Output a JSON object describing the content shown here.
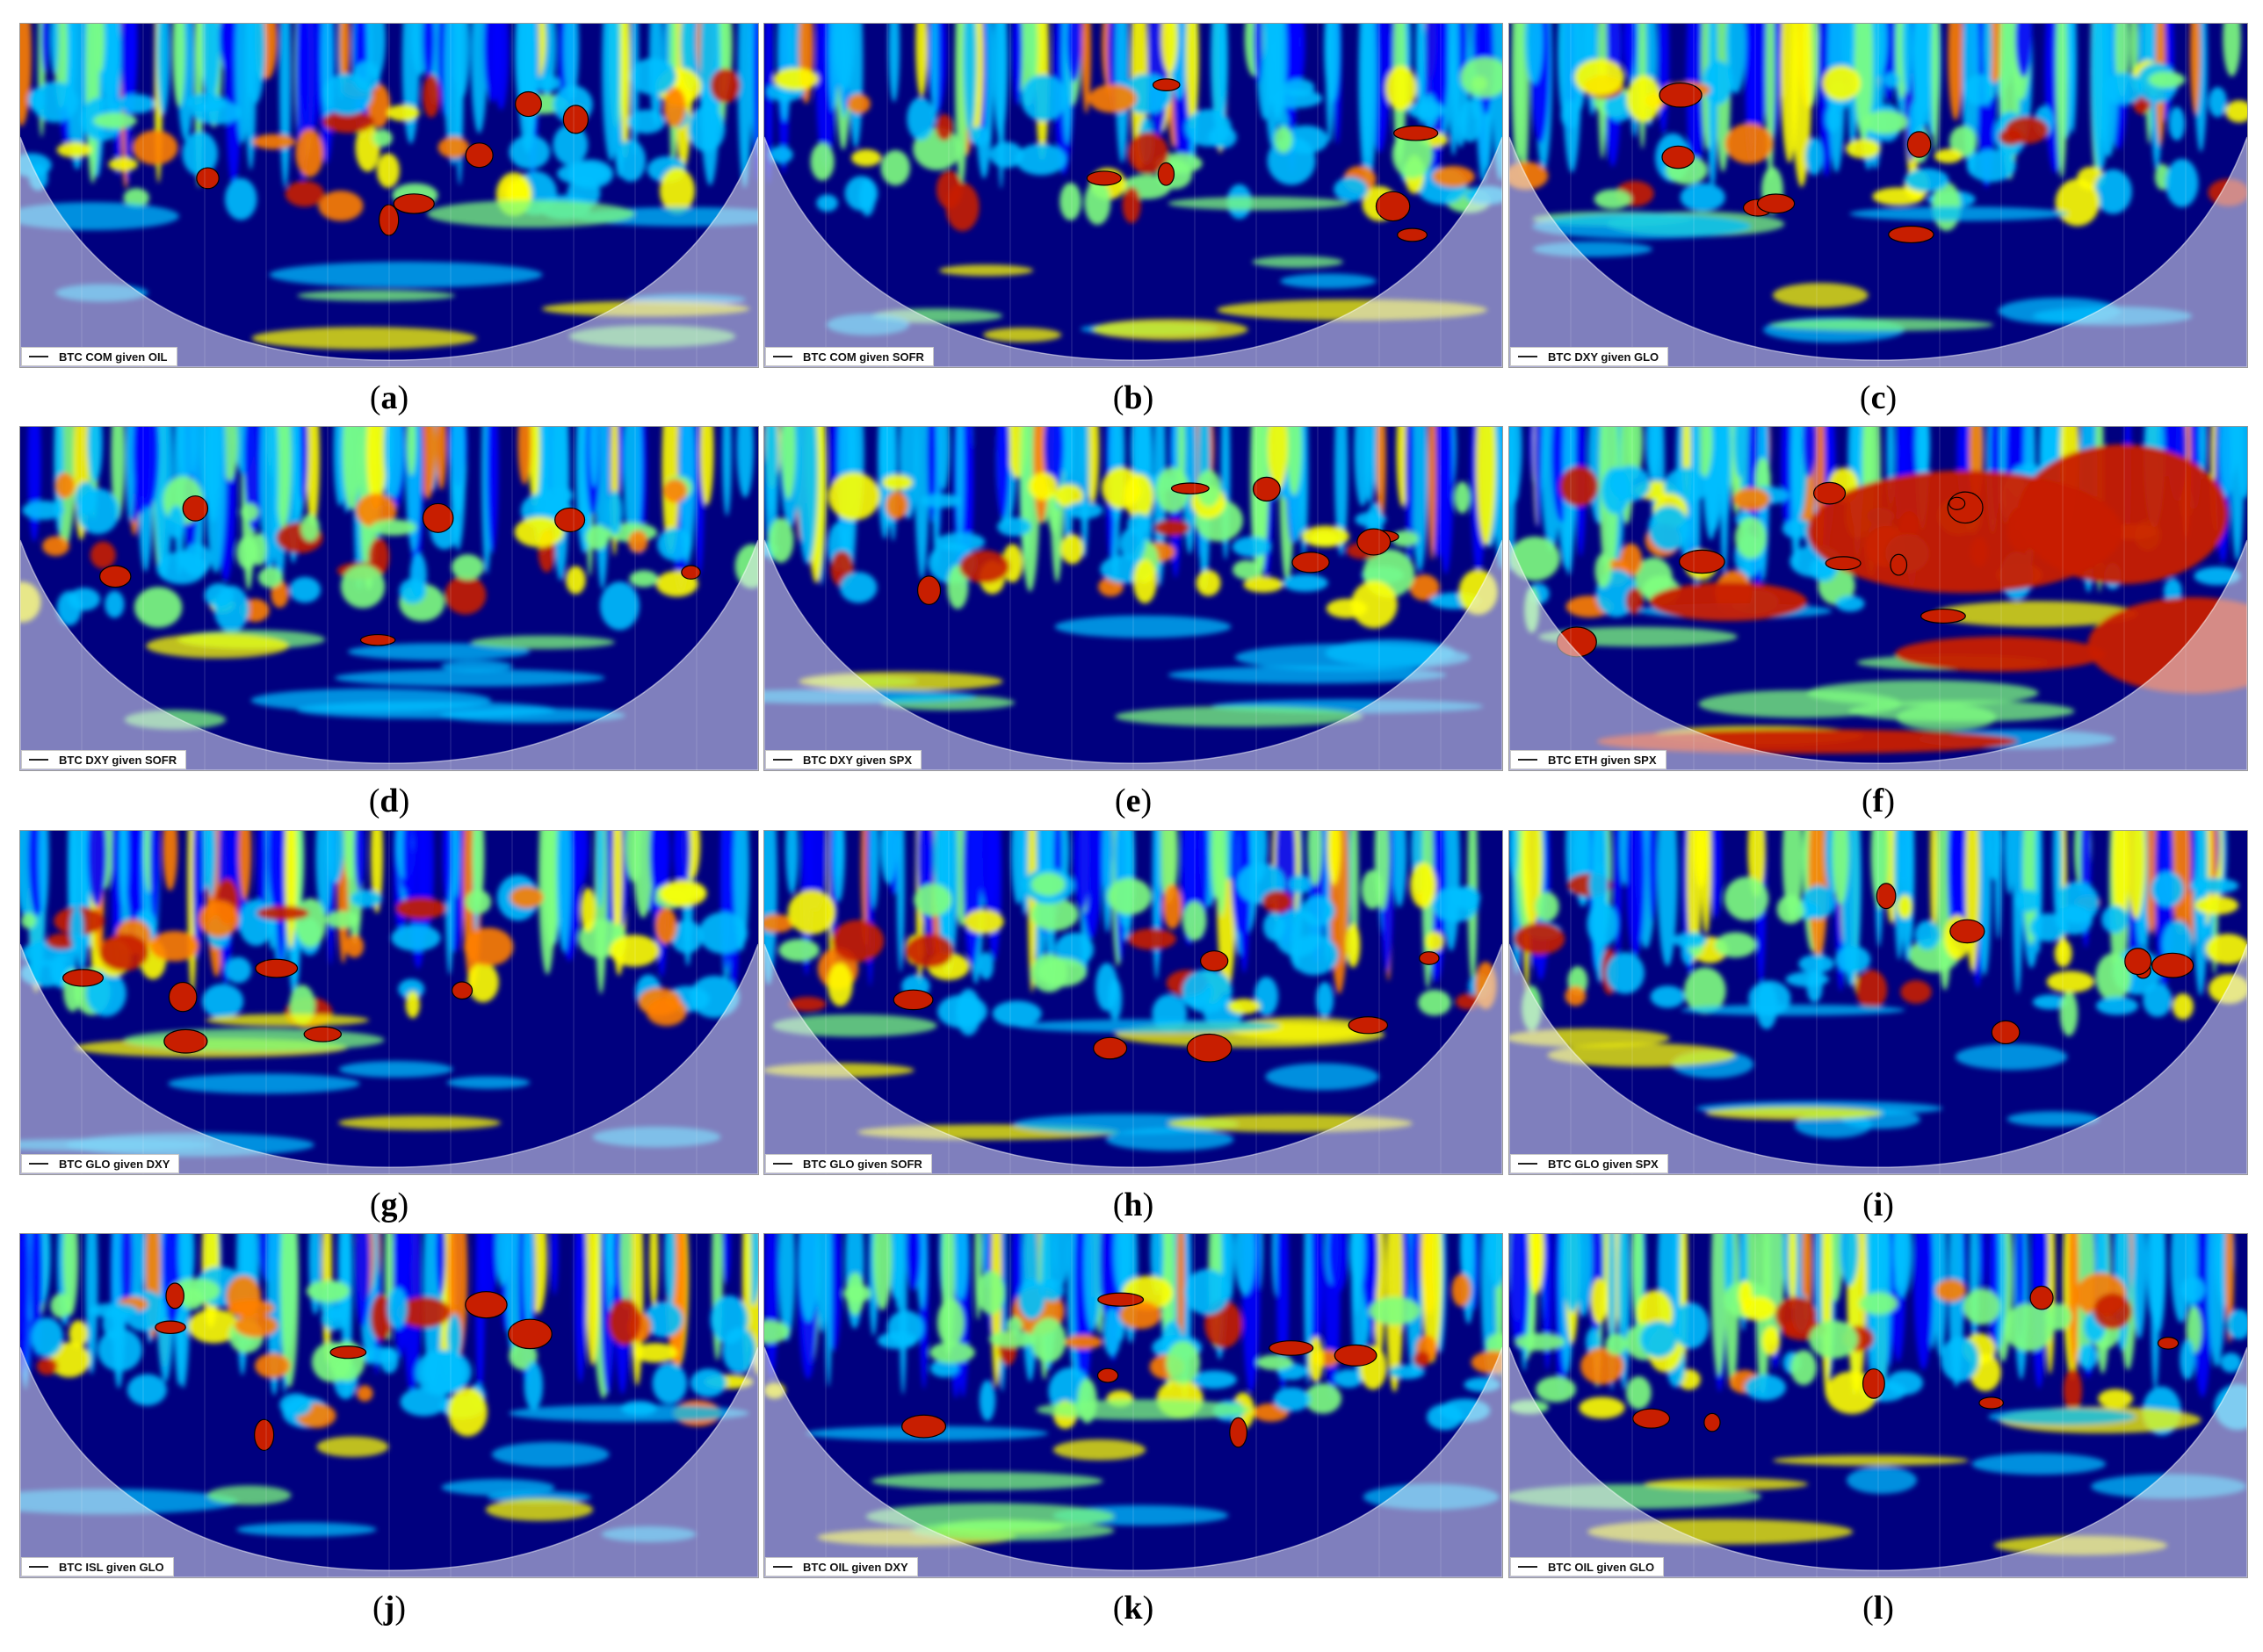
{
  "chart_data": [
    {
      "type": "heatmap",
      "panel": "a",
      "legend": "BTC COM given OIL"
    },
    {
      "type": "heatmap",
      "panel": "b",
      "legend": "BTC COM given SOFR"
    },
    {
      "type": "heatmap",
      "panel": "c",
      "legend": "BTC DXY given GLO"
    },
    {
      "type": "heatmap",
      "panel": "d",
      "legend": "BTC DXY given SOFR"
    },
    {
      "type": "heatmap",
      "panel": "e",
      "legend": "BTC DXY given SPX"
    },
    {
      "type": "heatmap",
      "panel": "f",
      "legend": "BTC ETH given SPX"
    },
    {
      "type": "heatmap",
      "panel": "g",
      "legend": "BTC GLO given DXY"
    },
    {
      "type": "heatmap",
      "panel": "h",
      "legend": "BTC GLO given SOFR"
    },
    {
      "type": "heatmap",
      "panel": "i",
      "legend": "BTC GLO given SPX"
    },
    {
      "type": "heatmap",
      "panel": "j",
      "legend": "BTC ISL given GLO"
    },
    {
      "type": "heatmap",
      "panel": "k",
      "legend": "BTC OIL given DXY"
    },
    {
      "type": "heatmap",
      "panel": "l",
      "legend": "BTC OIL given GLO"
    }
  ],
  "colors": {
    "colormap": [
      "#00007f",
      "#0000ff",
      "#00bfff",
      "#7fff7f",
      "#ffff00",
      "#ff7f00",
      "#c81e00"
    ],
    "cone_overlay": "#e8e8f0",
    "contour": "#000000"
  }
}
